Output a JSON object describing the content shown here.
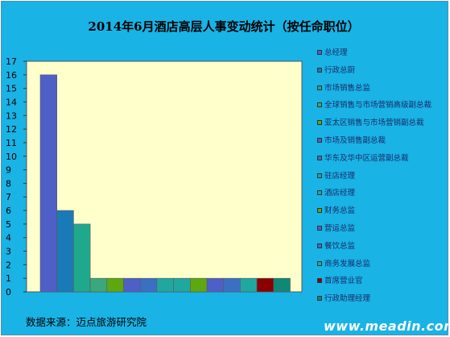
{
  "chart_data": {
    "type": "bar",
    "title": "2014年6月酒店高层人事变动统计（按任命职位）",
    "xlabel": "",
    "ylabel": "",
    "ylim": [
      0,
      17
    ],
    "yticks": [
      0,
      1,
      2,
      3,
      4,
      5,
      6,
      7,
      8,
      9,
      10,
      11,
      12,
      13,
      14,
      15,
      16,
      17
    ],
    "grid": false,
    "legend_position": "right",
    "categories": [
      "总经理",
      "行政总厨",
      "市场销售总监",
      "全球销售与市场营销高级副总裁",
      "亚太区销售与市场营销副总裁",
      "市场及销售副总裁",
      "华东及华中区运营副总裁",
      "驻店经理",
      "酒店经理",
      "财务总监",
      "营运总监",
      "餐饮总监",
      "商务发展总监",
      "首席营业官",
      "行政助理经理"
    ],
    "values": [
      16,
      6,
      5,
      1,
      1,
      1,
      1,
      1,
      1,
      1,
      1,
      1,
      1,
      1,
      1
    ],
    "colors": [
      "#4f5fc8",
      "#1a7ab8",
      "#20a88e",
      "#3aa87a",
      "#5da810",
      "#4f5fc8",
      "#3b6fc4",
      "#20a8a0",
      "#20a8a0",
      "#5da810",
      "#4f5fc8",
      "#3b6fc4",
      "#20a8a0",
      "#8b0000",
      "#108878"
    ]
  },
  "footer": {
    "source": "数据来源：迈点旅游研究院",
    "watermark": "www.meadin.com"
  }
}
